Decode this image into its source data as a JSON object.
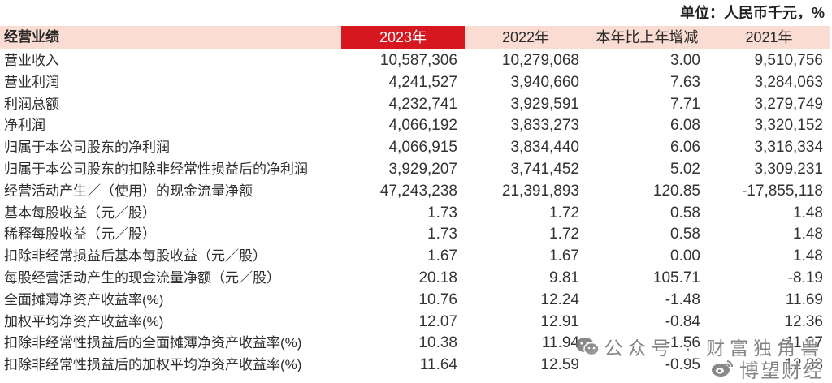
{
  "unit_note": "单位：人民币千元，%",
  "table": {
    "headers": [
      "经营业绩",
      "2023年",
      "2022年",
      "本年比上年增减",
      "2021年"
    ],
    "rows": [
      [
        "营业收入",
        "10,587,306",
        "10,279,068",
        "3.00",
        "9,510,756"
      ],
      [
        "营业利润",
        "4,241,527",
        "3,940,660",
        "7.63",
        "3,284,063"
      ],
      [
        "利润总额",
        "4,232,741",
        "3,929,591",
        "7.71",
        "3,279,749"
      ],
      [
        "净利润",
        "4,066,192",
        "3,833,273",
        "6.08",
        "3,320,152"
      ],
      [
        "归属于本公司股东的净利润",
        "4,066,915",
        "3,834,440",
        "6.06",
        "3,316,334"
      ],
      [
        "归属于本公司股东的扣除非经常性损益后的净利润",
        "3,929,207",
        "3,741,452",
        "5.02",
        "3,309,231"
      ],
      [
        "经营活动产生／（使用）的现金流量净额",
        "47,243,238",
        "21,391,893",
        "120.85",
        "-17,855,118"
      ],
      [
        "基本每股收益（元／股）",
        "1.73",
        "1.72",
        "0.58",
        "1.48"
      ],
      [
        "稀释每股收益（元／股）",
        "1.73",
        "1.72",
        "0.58",
        "1.48"
      ],
      [
        "扣除非经常损益后基本每股收益（元／股）",
        "1.67",
        "1.67",
        "0.00",
        "1.48"
      ],
      [
        "每股经营活动产生的现金流量净额（元／股）",
        "20.18",
        "9.81",
        "105.71",
        "-8.19"
      ],
      [
        "全面摊薄净资产收益率(%)",
        "10.76",
        "12.24",
        "-1.48",
        "11.69"
      ],
      [
        "加权平均净资产收益率(%)",
        "12.07",
        "12.91",
        "-0.84",
        "12.36"
      ],
      [
        "扣除非经常性损益后的全面摊薄净资产收益率(%)",
        "10.38",
        "11.94",
        "-1.56",
        "11.67"
      ],
      [
        "扣除非经常性损益后的加权平均净资产收益率(%)",
        "11.64",
        "12.59",
        "-0.95",
        "12.33"
      ]
    ]
  },
  "watermarks": {
    "wechat_text": "公众号 · 财富独角兽",
    "weibo_text": "博望财经"
  },
  "icons": {
    "wechat": "wechat-icon",
    "weibo": "weibo-icon"
  },
  "colors": {
    "header_bg": "#fadcd2",
    "highlight": "#d7171f",
    "text": "#333333"
  }
}
